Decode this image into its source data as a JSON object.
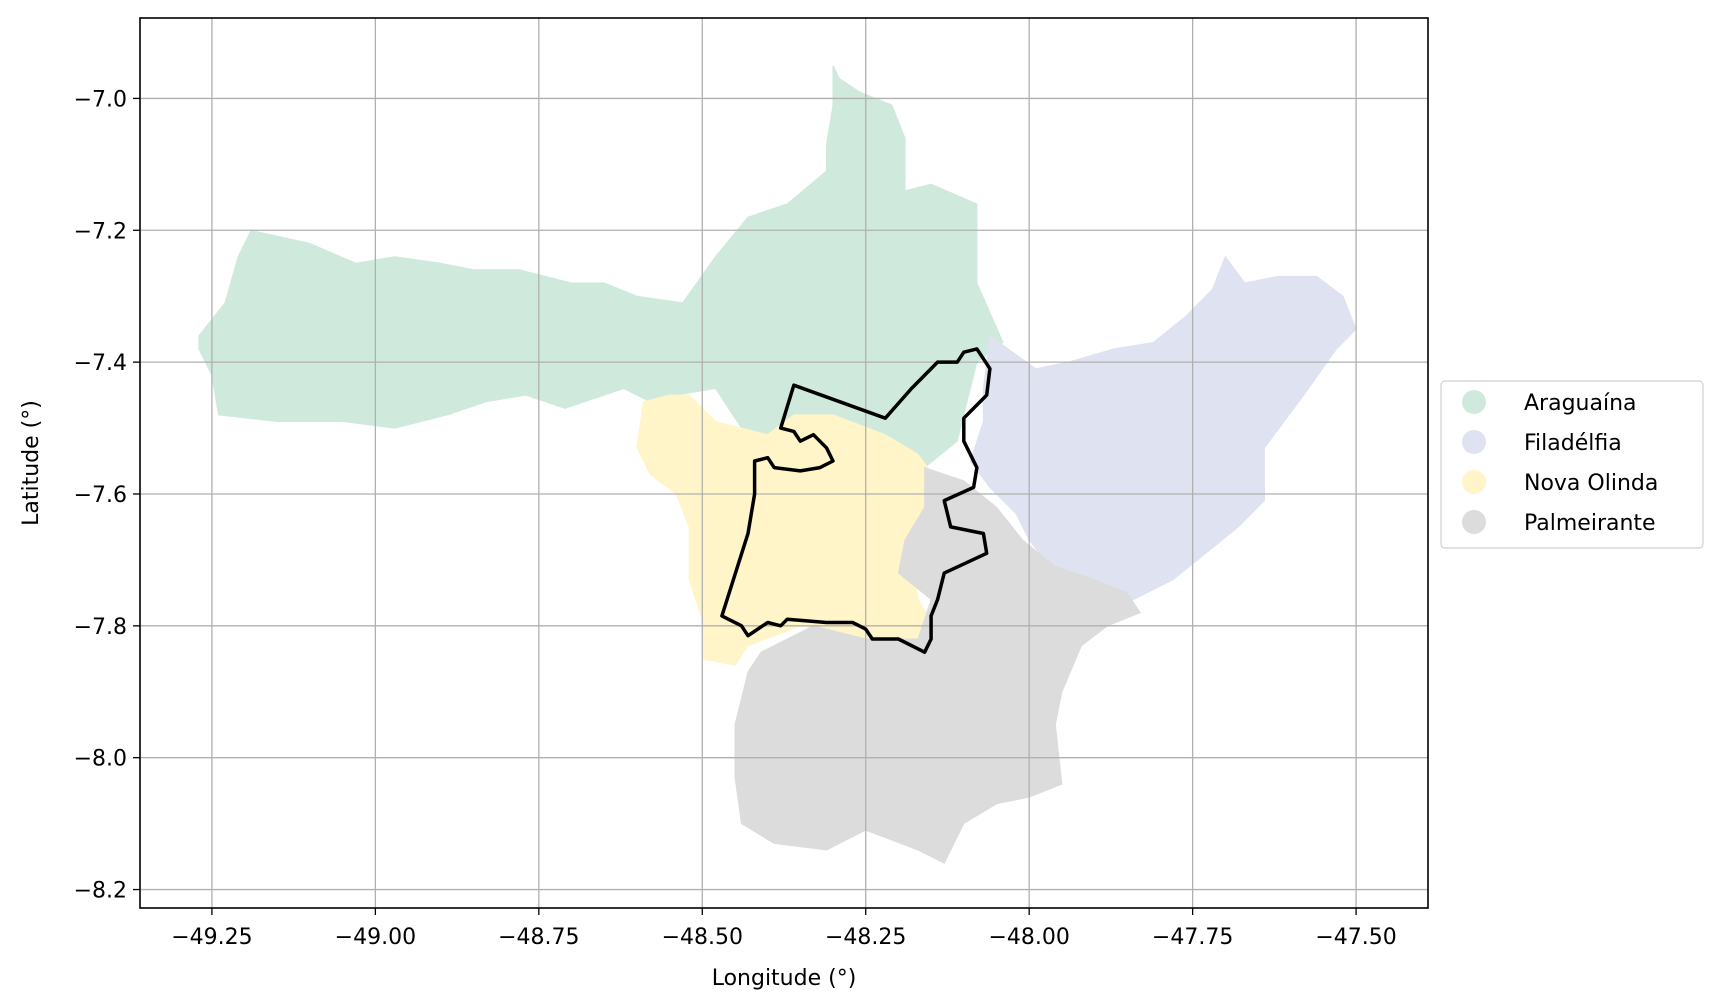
{
  "chart_data": {
    "type": "map",
    "xlabel": "Longitude (°)",
    "ylabel": "Latitude (°)",
    "xlim": [
      -49.36,
      -47.39
    ],
    "ylim": [
      -8.228,
      -6.878
    ],
    "grid": true,
    "legend_placement": "right",
    "xticks": [
      {
        "value": -49.25,
        "label": "−49.25"
      },
      {
        "value": -49.0,
        "label": "−49.00"
      },
      {
        "value": -48.75,
        "label": "−48.75"
      },
      {
        "value": -48.5,
        "label": "−48.50"
      },
      {
        "value": -48.25,
        "label": "−48.25"
      },
      {
        "value": -48.0,
        "label": "−48.00"
      },
      {
        "value": -47.75,
        "label": "−47.75"
      },
      {
        "value": -47.5,
        "label": "−47.50"
      }
    ],
    "yticks": [
      {
        "value": -7.0,
        "label": "−7.0"
      },
      {
        "value": -7.2,
        "label": "−7.2"
      },
      {
        "value": -7.4,
        "label": "−7.4"
      },
      {
        "value": -7.6,
        "label": "−7.6"
      },
      {
        "value": -7.8,
        "label": "−7.8"
      },
      {
        "value": -8.0,
        "label": "−8.0"
      },
      {
        "value": -8.2,
        "label": "−8.2"
      }
    ],
    "regions": [
      {
        "name": "Araguaína",
        "color": "#cfeadd",
        "boundary": [
          [
            -49.27,
            -7.36
          ],
          [
            -49.23,
            -7.31
          ],
          [
            -49.21,
            -7.24
          ],
          [
            -49.19,
            -7.2
          ],
          [
            -49.1,
            -7.22
          ],
          [
            -49.03,
            -7.25
          ],
          [
            -48.97,
            -7.24
          ],
          [
            -48.9,
            -7.25
          ],
          [
            -48.85,
            -7.26
          ],
          [
            -48.78,
            -7.26
          ],
          [
            -48.7,
            -7.28
          ],
          [
            -48.65,
            -7.28
          ],
          [
            -48.6,
            -7.3
          ],
          [
            -48.53,
            -7.31
          ],
          [
            -48.48,
            -7.24
          ],
          [
            -48.43,
            -7.18
          ],
          [
            -48.37,
            -7.16
          ],
          [
            -48.31,
            -7.11
          ],
          [
            -48.31,
            -7.07
          ],
          [
            -48.3,
            -7.01
          ],
          [
            -48.3,
            -6.95
          ],
          [
            -48.29,
            -6.97
          ],
          [
            -48.26,
            -6.99
          ],
          [
            -48.21,
            -7.01
          ],
          [
            -48.19,
            -7.06
          ],
          [
            -48.19,
            -7.14
          ],
          [
            -48.15,
            -7.13
          ],
          [
            -48.08,
            -7.16
          ],
          [
            -48.08,
            -7.28
          ],
          [
            -48.04,
            -7.37
          ],
          [
            -48.08,
            -7.4
          ],
          [
            -48.11,
            -7.52
          ],
          [
            -48.16,
            -7.56
          ],
          [
            -48.25,
            -7.53
          ],
          [
            -48.34,
            -7.49
          ],
          [
            -48.42,
            -7.53
          ],
          [
            -48.48,
            -7.44
          ],
          [
            -48.54,
            -7.45
          ],
          [
            -48.57,
            -7.56
          ],
          [
            -48.59,
            -7.53
          ],
          [
            -48.58,
            -7.46
          ],
          [
            -48.62,
            -7.44
          ],
          [
            -48.71,
            -7.47
          ],
          [
            -48.77,
            -7.45
          ],
          [
            -48.83,
            -7.46
          ],
          [
            -48.89,
            -7.48
          ],
          [
            -48.97,
            -7.5
          ],
          [
            -49.05,
            -7.49
          ],
          [
            -49.15,
            -7.49
          ],
          [
            -49.24,
            -7.48
          ],
          [
            -49.25,
            -7.42
          ],
          [
            -49.27,
            -7.38
          ]
        ]
      },
      {
        "name": "Filadélfia",
        "color": "#dfe3f1",
        "boundary": [
          [
            -48.06,
            -7.36
          ],
          [
            -47.99,
            -7.41
          ],
          [
            -47.94,
            -7.4
          ],
          [
            -47.87,
            -7.38
          ],
          [
            -47.81,
            -7.37
          ],
          [
            -47.76,
            -7.33
          ],
          [
            -47.72,
            -7.29
          ],
          [
            -47.7,
            -7.24
          ],
          [
            -47.67,
            -7.28
          ],
          [
            -47.62,
            -7.27
          ],
          [
            -47.56,
            -7.27
          ],
          [
            -47.52,
            -7.3
          ],
          [
            -47.5,
            -7.35
          ],
          [
            -47.53,
            -7.38
          ],
          [
            -47.58,
            -7.45
          ],
          [
            -47.64,
            -7.53
          ],
          [
            -47.64,
            -7.61
          ],
          [
            -47.68,
            -7.65
          ],
          [
            -47.73,
            -7.69
          ],
          [
            -47.78,
            -7.73
          ],
          [
            -47.84,
            -7.76
          ],
          [
            -47.9,
            -7.76
          ],
          [
            -47.96,
            -7.72
          ],
          [
            -48.0,
            -7.67
          ],
          [
            -48.02,
            -7.63
          ],
          [
            -48.06,
            -7.59
          ],
          [
            -48.09,
            -7.55
          ],
          [
            -48.07,
            -7.49
          ],
          [
            -48.07,
            -7.44
          ]
        ]
      },
      {
        "name": "Nova Olinda",
        "color": "#fff5c8",
        "boundary": [
          [
            -48.59,
            -7.46
          ],
          [
            -48.55,
            -7.45
          ],
          [
            -48.52,
            -7.45
          ],
          [
            -48.48,
            -7.49
          ],
          [
            -48.4,
            -7.51
          ],
          [
            -48.36,
            -7.48
          ],
          [
            -48.3,
            -7.48
          ],
          [
            -48.22,
            -7.51
          ],
          [
            -48.17,
            -7.54
          ],
          [
            -48.14,
            -7.58
          ],
          [
            -48.14,
            -7.64
          ],
          [
            -48.18,
            -7.7
          ],
          [
            -48.17,
            -7.76
          ],
          [
            -48.14,
            -7.81
          ],
          [
            -48.17,
            -7.83
          ],
          [
            -48.25,
            -7.82
          ],
          [
            -48.35,
            -7.8
          ],
          [
            -48.43,
            -7.83
          ],
          [
            -48.45,
            -7.86
          ],
          [
            -48.5,
            -7.85
          ],
          [
            -48.5,
            -7.79
          ],
          [
            -48.52,
            -7.73
          ],
          [
            -48.52,
            -7.65
          ],
          [
            -48.54,
            -7.6
          ],
          [
            -48.58,
            -7.57
          ],
          [
            -48.6,
            -7.53
          ]
        ]
      },
      {
        "name": "Palmeirante",
        "color": "#dcdcdc",
        "boundary": [
          [
            -48.16,
            -7.56
          ],
          [
            -48.1,
            -7.58
          ],
          [
            -48.05,
            -7.62
          ],
          [
            -48.01,
            -7.67
          ],
          [
            -47.96,
            -7.71
          ],
          [
            -47.9,
            -7.73
          ],
          [
            -47.85,
            -7.75
          ],
          [
            -47.83,
            -7.78
          ],
          [
            -47.88,
            -7.8
          ],
          [
            -47.92,
            -7.83
          ],
          [
            -47.95,
            -7.9
          ],
          [
            -47.96,
            -7.95
          ],
          [
            -47.95,
            -8.04
          ],
          [
            -48.0,
            -8.06
          ],
          [
            -48.05,
            -8.07
          ],
          [
            -48.1,
            -8.1
          ],
          [
            -48.13,
            -8.16
          ],
          [
            -48.17,
            -8.14
          ],
          [
            -48.25,
            -8.11
          ],
          [
            -48.31,
            -8.14
          ],
          [
            -48.39,
            -8.13
          ],
          [
            -48.44,
            -8.1
          ],
          [
            -48.45,
            -8.03
          ],
          [
            -48.45,
            -7.95
          ],
          [
            -48.43,
            -7.87
          ],
          [
            -48.41,
            -7.84
          ],
          [
            -48.33,
            -7.8
          ],
          [
            -48.25,
            -7.82
          ],
          [
            -48.17,
            -7.82
          ],
          [
            -48.15,
            -7.76
          ],
          [
            -48.2,
            -7.72
          ],
          [
            -48.19,
            -7.67
          ],
          [
            -48.16,
            -7.62
          ]
        ]
      }
    ],
    "outline": {
      "color": "#000000",
      "boundary": [
        [
          -48.38,
          -7.5
        ],
        [
          -48.36,
          -7.435
        ],
        [
          -48.22,
          -7.485
        ],
        [
          -48.18,
          -7.44
        ],
        [
          -48.14,
          -7.4
        ],
        [
          -48.11,
          -7.4
        ],
        [
          -48.1,
          -7.385
        ],
        [
          -48.08,
          -7.38
        ],
        [
          -48.07,
          -7.395
        ],
        [
          -48.06,
          -7.41
        ],
        [
          -48.065,
          -7.45
        ],
        [
          -48.1,
          -7.485
        ],
        [
          -48.1,
          -7.52
        ],
        [
          -48.08,
          -7.56
        ],
        [
          -48.085,
          -7.59
        ],
        [
          -48.13,
          -7.61
        ],
        [
          -48.12,
          -7.65
        ],
        [
          -48.07,
          -7.66
        ],
        [
          -48.065,
          -7.69
        ],
        [
          -48.13,
          -7.72
        ],
        [
          -48.14,
          -7.76
        ],
        [
          -48.15,
          -7.785
        ],
        [
          -48.15,
          -7.82
        ],
        [
          -48.16,
          -7.84
        ],
        [
          -48.2,
          -7.82
        ],
        [
          -48.24,
          -7.82
        ],
        [
          -48.25,
          -7.805
        ],
        [
          -48.27,
          -7.795
        ],
        [
          -48.31,
          -7.795
        ],
        [
          -48.37,
          -7.79
        ],
        [
          -48.38,
          -7.8
        ],
        [
          -48.4,
          -7.795
        ],
        [
          -48.43,
          -7.815
        ],
        [
          -48.44,
          -7.8
        ],
        [
          -48.47,
          -7.785
        ],
        [
          -48.43,
          -7.66
        ],
        [
          -48.42,
          -7.6
        ],
        [
          -48.42,
          -7.55
        ],
        [
          -48.4,
          -7.545
        ],
        [
          -48.39,
          -7.56
        ],
        [
          -48.35,
          -7.565
        ],
        [
          -48.32,
          -7.56
        ],
        [
          -48.3,
          -7.55
        ],
        [
          -48.31,
          -7.53
        ],
        [
          -48.33,
          -7.51
        ],
        [
          -48.35,
          -7.52
        ],
        [
          -48.36,
          -7.505
        ]
      ]
    },
    "legend": [
      {
        "label": "Araguaína",
        "color": "#cfeadd"
      },
      {
        "label": "Filadélfia",
        "color": "#dfe3f1"
      },
      {
        "label": "Nova Olinda",
        "color": "#fff5c8"
      },
      {
        "label": "Palmeirante",
        "color": "#dcdcdc"
      }
    ]
  }
}
